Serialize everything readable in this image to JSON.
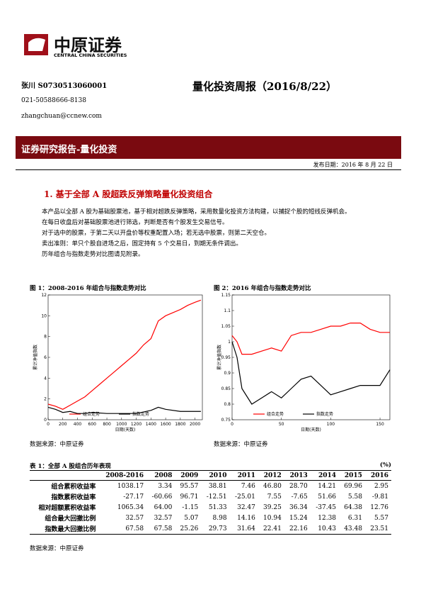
{
  "header": {
    "logo_cn": "中原证券",
    "logo_en": "CENTRAL CHINA SECURITIES",
    "author": "张川 S0730513060001",
    "phone": "021-50588666-8138",
    "email": "zhangchuan@ccnew.com",
    "title": "量化投资周报（2016/8/22）",
    "banner": "证券研究报告-量化投资",
    "date": "发布日期：2016 年 8 月 22 日"
  },
  "section": {
    "heading": "1. 基于全部 A 股超跌反弹策略量化投资组合",
    "paragraphs": [
      "本产品以全部 A 股为基础股票池，基于相对超跌反弹策略，采用数量化投资方法构建，以捕捉个股的短线反弹机会。",
      "在每日收盘后对基础股票池进行筛选，判断是否有个股发生交易信号。",
      "对于选中的股票，于第二天以开盘价等权重配置入场；若无选中股票，则第二天空仓。",
      "卖出准则：单只个股自进场之后，固定持有 5 个交易日，到期无条件调出。",
      "历年组合与指数走势对比图请见附录。"
    ]
  },
  "figures": [
    {
      "title": "图 1：2008-2016 年组合与指数走势对比",
      "source": "数据来源：中原证券",
      "xlabel": "日期(天数)",
      "ylabel": "累计净值指数",
      "xlim": [
        0,
        2100
      ],
      "ylim": [
        0,
        12
      ],
      "xticks": [
        0,
        200,
        400,
        600,
        800,
        1000,
        1200,
        1400,
        1600,
        1800,
        2000
      ],
      "yticks": [
        0,
        2,
        4,
        6,
        8,
        10,
        12
      ],
      "series": [
        {
          "name": "组合走势",
          "color": "#ff0000",
          "x": [
            0,
            100,
            200,
            300,
            400,
            500,
            600,
            700,
            800,
            900,
            1000,
            1100,
            1200,
            1300,
            1400,
            1500,
            1600,
            1700,
            1800,
            1900,
            2000,
            2080
          ],
          "values": [
            1.5,
            1.3,
            1.0,
            1.4,
            1.8,
            2.2,
            2.8,
            3.4,
            4.0,
            4.6,
            5.2,
            5.8,
            6.4,
            7.2,
            7.8,
            9.5,
            10.0,
            10.3,
            10.6,
            11.0,
            11.3,
            11.5
          ]
        },
        {
          "name": "指数走势",
          "color": "#000000",
          "x": [
            0,
            100,
            200,
            300,
            400,
            500,
            600,
            800,
            1000,
            1200,
            1400,
            1500,
            1600,
            1800,
            2080
          ],
          "values": [
            1.2,
            1.0,
            0.7,
            0.8,
            0.6,
            0.6,
            0.7,
            0.6,
            0.6,
            0.6,
            0.9,
            1.2,
            1.0,
            0.8,
            0.8
          ]
        }
      ]
    },
    {
      "title": "图 2：2016 年组合与指数走势对比",
      "source": "数据来源：中原证券",
      "xlabel": "日期(天数)",
      "ylabel": "累计净值指数",
      "xlim": [
        0,
        160
      ],
      "ylim": [
        0.75,
        1.15
      ],
      "xticks": [
        0,
        50,
        100,
        150
      ],
      "yticks": [
        0.75,
        0.8,
        0.85,
        0.9,
        0.95,
        1,
        1.05,
        1.1,
        1.15
      ],
      "series": [
        {
          "name": "组合走势",
          "color": "#ff0000",
          "x": [
            0,
            5,
            10,
            20,
            30,
            40,
            50,
            60,
            70,
            80,
            90,
            100,
            110,
            120,
            130,
            140,
            150,
            160
          ],
          "values": [
            1.02,
            1.0,
            0.96,
            0.96,
            0.97,
            0.98,
            0.97,
            1.02,
            1.03,
            1.03,
            1.04,
            1.05,
            1.05,
            1.06,
            1.06,
            1.04,
            1.03,
            1.03
          ]
        },
        {
          "name": "指数走势",
          "color": "#000000",
          "x": [
            0,
            5,
            10,
            20,
            30,
            40,
            50,
            60,
            70,
            80,
            90,
            100,
            110,
            120,
            130,
            140,
            150,
            160
          ],
          "values": [
            1.0,
            0.95,
            0.85,
            0.8,
            0.82,
            0.84,
            0.82,
            0.85,
            0.88,
            0.89,
            0.86,
            0.83,
            0.84,
            0.85,
            0.86,
            0.86,
            0.86,
            0.91
          ]
        }
      ]
    }
  ],
  "table": {
    "title": "表 1：全部 A 股组合历年表现",
    "unit": "(%)",
    "columns": [
      "2008-2016",
      "2008",
      "2009",
      "2010",
      "2011",
      "2012",
      "2013",
      "2014",
      "2015",
      "2016"
    ],
    "rows": [
      [
        "组合累积收益率",
        "1038.17",
        "3.34",
        "95.57",
        "38.81",
        "7.46",
        "46.80",
        "28.70",
        "14.21",
        "69.96",
        "2.95"
      ],
      [
        "指数累积收益率",
        "-27.17",
        "-60.66",
        "96.71",
        "-12.51",
        "-25.01",
        "7.55",
        "-7.65",
        "51.66",
        "5.58",
        "-9.81"
      ],
      [
        "相对超额累积收益率",
        "1065.34",
        "64.00",
        "-1.15",
        "51.33",
        "32.47",
        "39.25",
        "36.34",
        "-37.45",
        "64.38",
        "12.76"
      ],
      [
        "组合最大回撤比例",
        "32.57",
        "32.57",
        "5.07",
        "8.98",
        "14.16",
        "10.94",
        "15.24",
        "12.38",
        "6.31",
        "5.57"
      ],
      [
        "指数最大回撤比例",
        "67.58",
        "67.58",
        "25.26",
        "29.73",
        "31.64",
        "22.41",
        "22.16",
        "10.43",
        "43.48",
        "23.51"
      ]
    ],
    "source": "数据来源：中原证券"
  }
}
